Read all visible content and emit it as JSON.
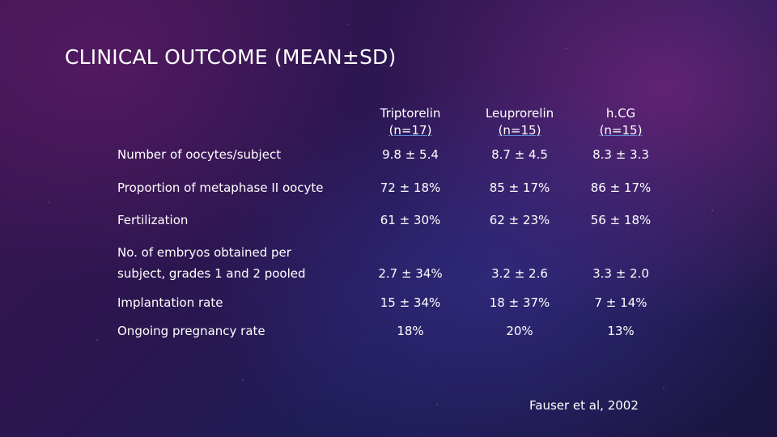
{
  "slide": {
    "title": "CLINICAL OUTCOME (MEAN±SD)",
    "source": "Fauser et al, 2002"
  },
  "table": {
    "columns": [
      {
        "name": "Triptorelin",
        "n": "(n=17)"
      },
      {
        "name": "Leuprorelin",
        "n": "(n=15)"
      },
      {
        "name": "h.CG",
        "n": "(n=15)"
      }
    ],
    "rows": [
      {
        "label": "Number of oocytes/subject",
        "values": [
          "9.8 ± 5.4",
          "8.7 ± 4.5",
          "8.3 ± 3.3"
        ]
      },
      {
        "label": "Proportion of metaphase II oocyte",
        "values": [
          "72 ± 18%",
          "85 ± 17%",
          "86 ± 17%"
        ]
      },
      {
        "label": "Fertilization",
        "values": [
          "61 ± 30%",
          "62 ± 23%",
          "56 ± 18%"
        ]
      },
      {
        "label_line1": "No. of embryos obtained per",
        "label_line2": "subject, grades 1 and 2 pooled",
        "values": [
          "2.7 ± 34%",
          "3.2 ± 2.6",
          "3.3 ± 2.0"
        ]
      },
      {
        "label": "Implantation rate",
        "values": [
          "15 ± 34%",
          "18 ± 37%",
          "7 ± 14%"
        ]
      },
      {
        "label": "Ongoing pregnancy rate",
        "values": [
          "18%",
          "20%",
          "13%"
        ]
      }
    ]
  }
}
